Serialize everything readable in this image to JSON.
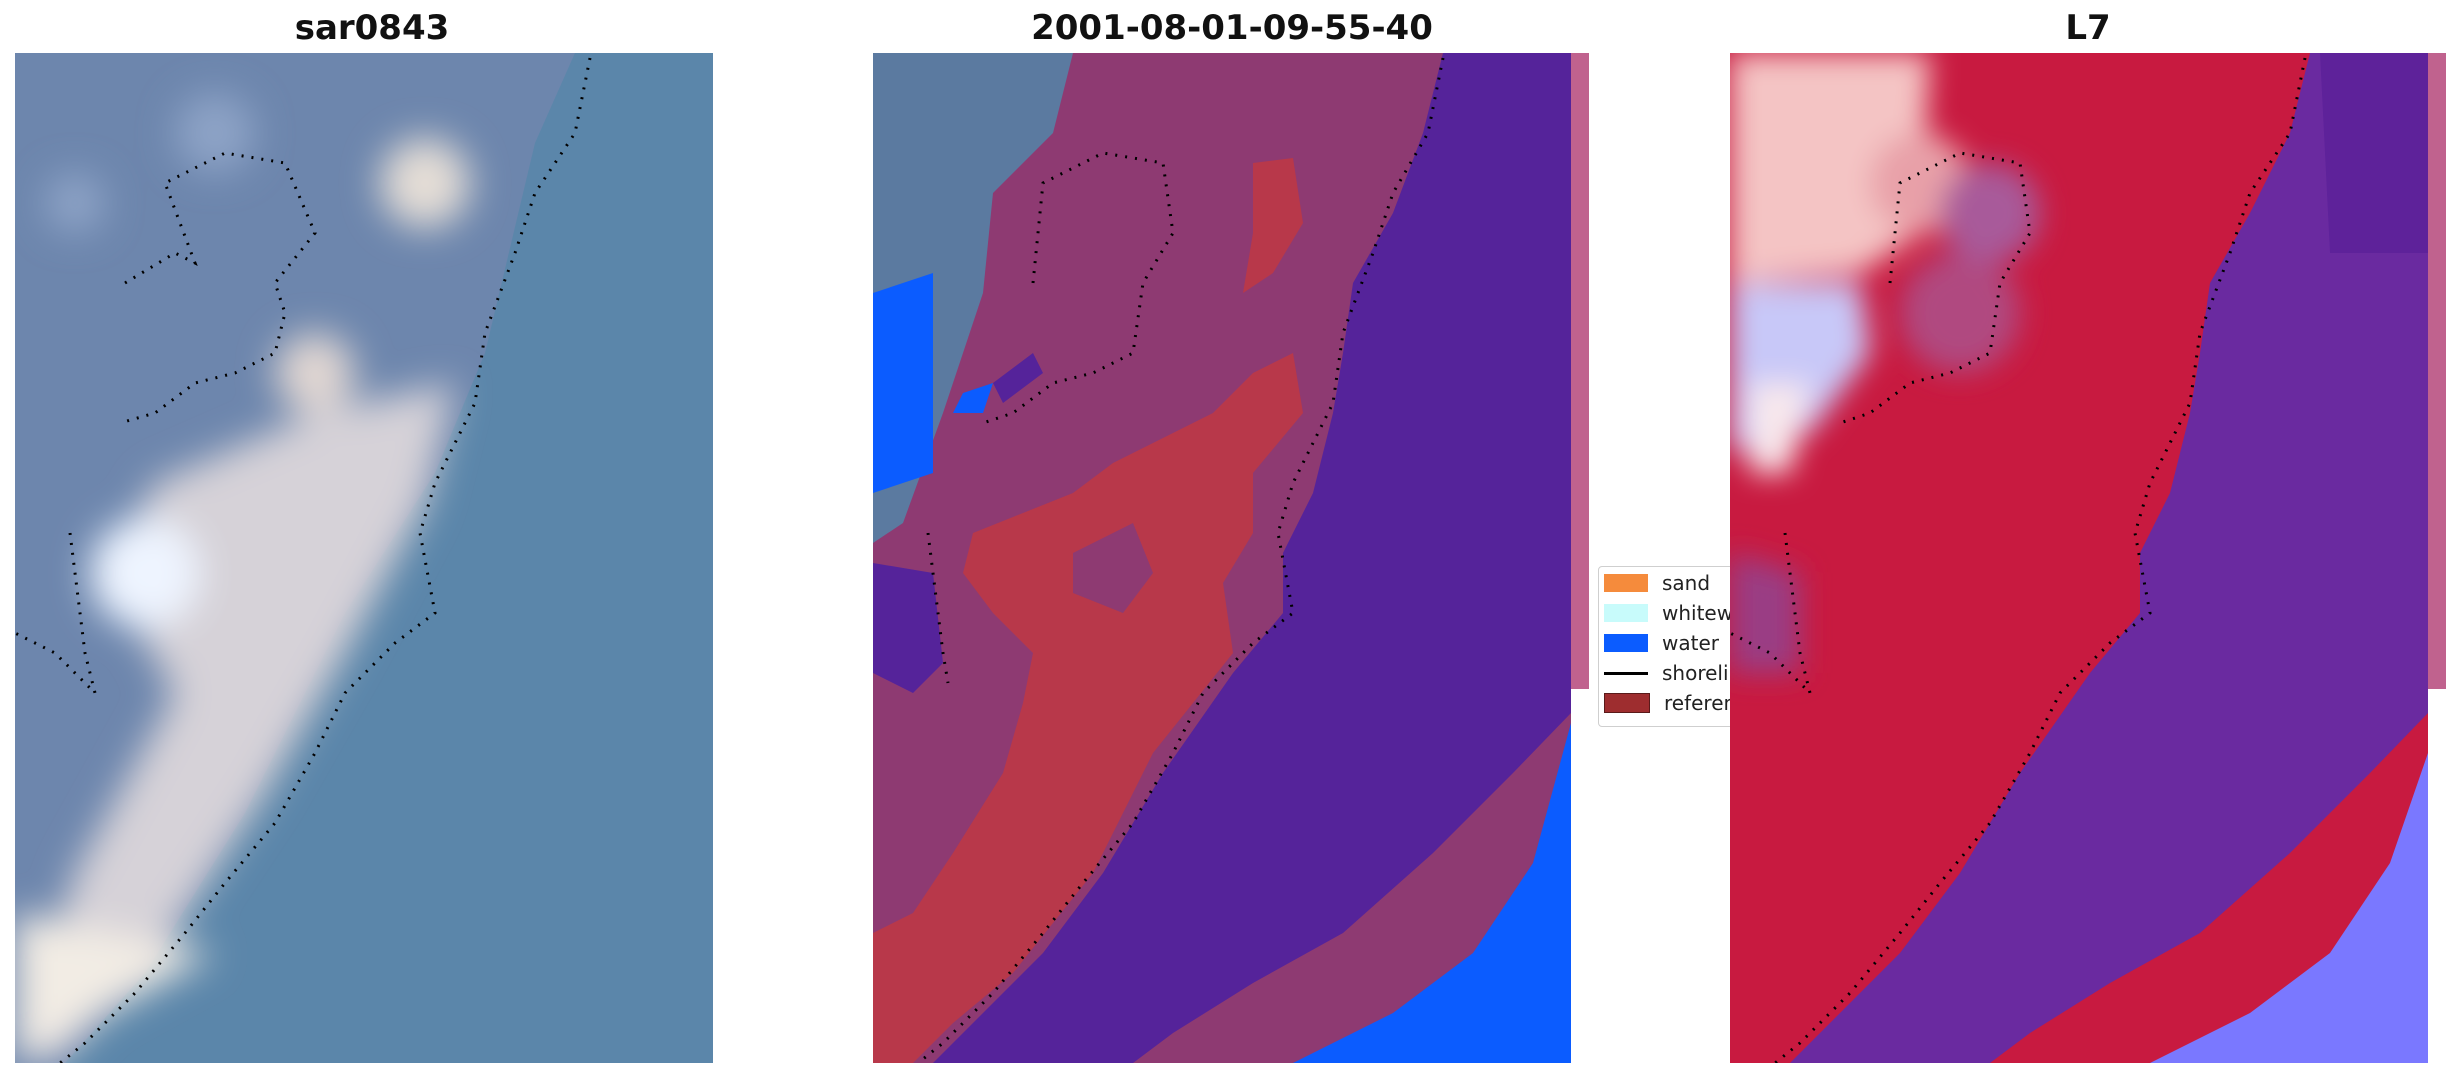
{
  "panels": [
    {
      "title": "sar0843"
    },
    {
      "title": "2001-08-01-09-55-40"
    },
    {
      "title": "L7"
    }
  ],
  "legend": {
    "items": [
      {
        "label": "sand",
        "color": "#f58b3c"
      },
      {
        "label": "whitewater",
        "color": "#c8fbfb"
      },
      {
        "label": "water",
        "color": "#0b5cff"
      },
      {
        "label": "shoreline",
        "color": "#000000"
      },
      {
        "label": "reference",
        "color": "#9e2d2f"
      }
    ]
  },
  "colors": {
    "water_rgb": "#5b86aa",
    "sand_rgb": "#d8d2d2",
    "land_rgb": "#6d86ad",
    "class_water": "#55239a",
    "class_land": "#8e3a72",
    "class_sand": "#b8384a",
    "class_blue": "#0b5cff",
    "index_red": "#c81a40",
    "index_purple": "#6a2aa0",
    "index_blue": "#7a78ff"
  }
}
